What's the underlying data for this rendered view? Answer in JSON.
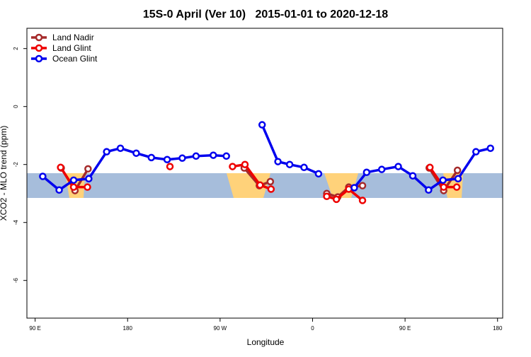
{
  "chart_data": {
    "type": "line",
    "title": "15S-0 April (Ver 10)   2015-01-01 to 2020-12-18",
    "x_label": "Longitude",
    "y_label": "XCO2 - MLO trend (ppm)",
    "xlim": [
      82,
      545
    ],
    "ylim": [
      -7.3,
      2.7
    ],
    "xticks": [
      {
        "value": 90,
        "label": "90 E"
      },
      {
        "value": 180,
        "label": "180"
      },
      {
        "value": 270,
        "label": "90 W"
      },
      {
        "value": 360,
        "label": "0"
      },
      {
        "value": 450,
        "label": "90 E"
      },
      {
        "value": 540,
        "label": "180"
      }
    ],
    "yticks": [
      2,
      0,
      -2,
      -4,
      -6
    ],
    "legend": "top-left",
    "series": [
      {
        "name": "Land Nadir",
        "color": "#a52a2a",
        "x": [
          115.4,
          128.8,
          141.5,
          null,
          293.5,
          308.2,
          318.9,
          null,
          373.8,
          384.5,
          395.2,
          408.6,
          null,
          473.5,
          487.6,
          501.0
        ],
        "values": [
          -2.12,
          -2.9,
          -2.15,
          null,
          -2.12,
          -2.73,
          -2.59,
          null,
          -3.0,
          -3.12,
          -2.78,
          -2.73,
          null,
          -2.12,
          -2.9,
          -2.2
        ]
      },
      {
        "name": "Land Glint",
        "color": "#ee0000",
        "x": [
          114.8,
          127.5,
          140.9,
          null,
          221.2,
          null,
          282.1,
          294.2,
          308.9,
          319.6,
          null,
          373.8,
          383.2,
          395.2,
          408.6,
          null,
          474.2,
          487.6,
          500.3
        ],
        "values": [
          -2.1,
          -2.78,
          -2.78,
          null,
          -2.07,
          null,
          -2.07,
          -2.0,
          -2.71,
          -2.85,
          null,
          -3.1,
          -3.2,
          -2.85,
          -3.24,
          null,
          -2.1,
          -2.78,
          -2.78
        ]
      },
      {
        "name": "Ocean Glint",
        "color": "#0000ee",
        "x": [
          97.4,
          113.4,
          127.5,
          142.2,
          159.6,
          173.0,
          188.4,
          203.1,
          218.5,
          233.2,
          246.6,
          263.4,
          276.1,
          null,
          310.9,
          326.3,
          337.7,
          351.7,
          365.8,
          null,
          400.6,
          412.6,
          427.3,
          443.4,
          457.5,
          472.9,
          486.9,
          501.6,
          519.0,
          533.1
        ],
        "values": [
          -2.41,
          -2.88,
          -2.54,
          -2.49,
          -1.56,
          -1.44,
          -1.61,
          -1.76,
          -1.83,
          -1.78,
          -1.71,
          -1.68,
          -1.71,
          null,
          -0.63,
          -1.9,
          -2.0,
          -2.1,
          -2.32,
          null,
          -2.8,
          -2.27,
          -2.17,
          -2.07,
          -2.39,
          -2.88,
          -2.54,
          -2.49,
          -1.56,
          -1.44
        ]
      }
    ]
  }
}
